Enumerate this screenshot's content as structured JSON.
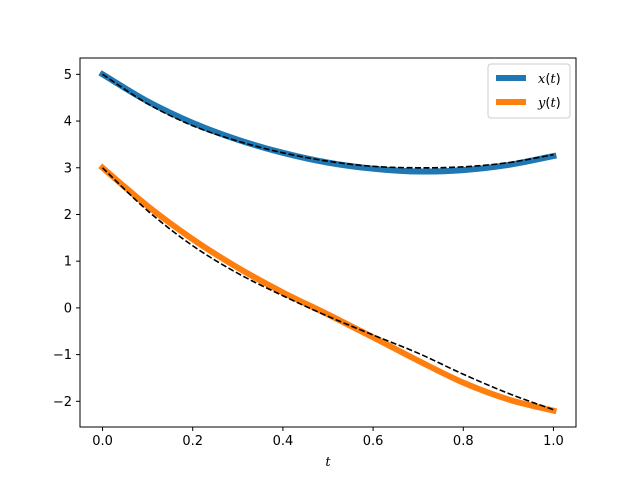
{
  "chart_data": {
    "type": "line",
    "title": "",
    "xlabel": "t",
    "ylabel": "",
    "xlim": [
      -0.05,
      1.05
    ],
    "ylim": [
      -2.55,
      5.35
    ],
    "xticks": [
      0.0,
      0.2,
      0.4,
      0.6,
      0.8,
      1.0
    ],
    "xtick_labels": [
      "0.0",
      "0.2",
      "0.4",
      "0.6",
      "0.8",
      "1.0"
    ],
    "yticks": [
      -2,
      -1,
      0,
      1,
      2,
      3,
      4,
      5
    ],
    "ytick_labels": [
      "−2",
      "−1",
      "0",
      "1",
      "2",
      "3",
      "4",
      "5"
    ],
    "grid": false,
    "legend_position": "top-right",
    "x": [
      0.0,
      0.1,
      0.2,
      0.3,
      0.4,
      0.5,
      0.6,
      0.7,
      0.8,
      0.9,
      1.0
    ],
    "series": [
      {
        "name_main": "x",
        "name_arg": "(t)",
        "color": "#1f77b4",
        "style": "solid-thick",
        "values": [
          5.0,
          4.42,
          3.96,
          3.6,
          3.32,
          3.11,
          2.98,
          2.92,
          2.95,
          3.06,
          3.25
        ]
      },
      {
        "name_main": "y",
        "name_arg": "(t)",
        "color": "#ff7f0e",
        "style": "solid-thick",
        "values": [
          3.0,
          2.18,
          1.47,
          0.86,
          0.33,
          -0.14,
          -0.63,
          -1.13,
          -1.6,
          -1.96,
          -2.2
        ]
      },
      {
        "color": "#000000",
        "style": "dashed",
        "values": [
          5.0,
          4.37,
          3.9,
          3.57,
          3.32,
          3.14,
          3.03,
          3.0,
          3.02,
          3.11,
          3.28
        ]
      },
      {
        "color": "#000000",
        "style": "dashed",
        "values": [
          3.0,
          2.08,
          1.33,
          0.74,
          0.26,
          -0.18,
          -0.58,
          -0.97,
          -1.42,
          -1.83,
          -2.18
        ]
      }
    ]
  }
}
